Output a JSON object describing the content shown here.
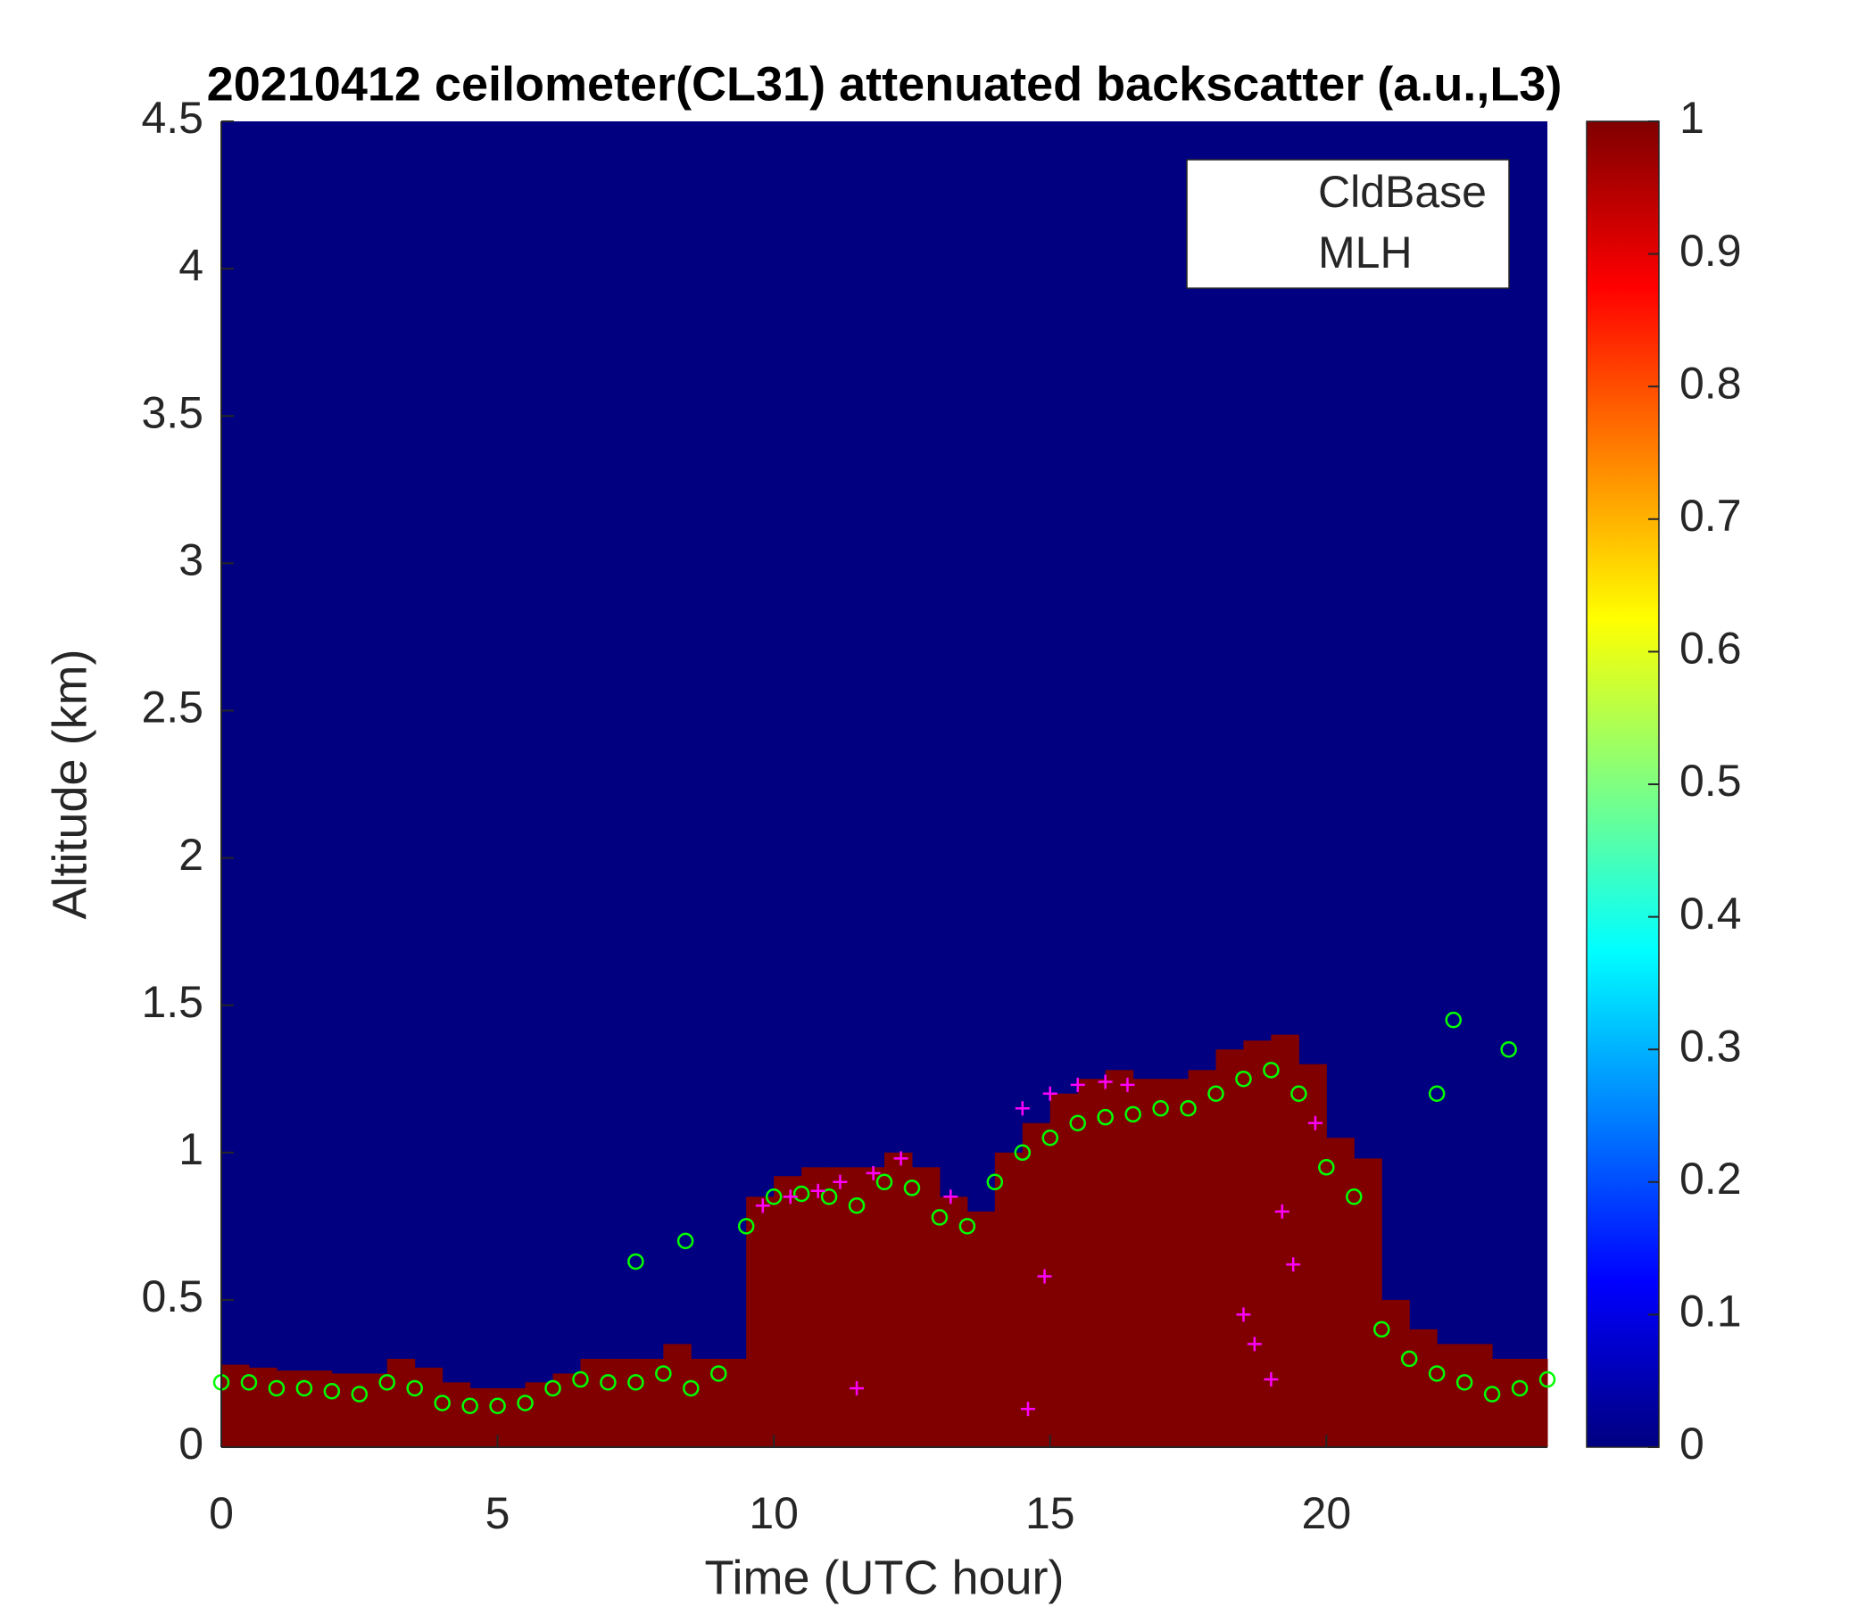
{
  "chart_data": {
    "type": "heatmap",
    "title": "20210412 ceilometer(CL31) attenuated backscatter (a.u.,L3)",
    "xlabel": "Time (UTC hour)",
    "ylabel": "Altitude (km)",
    "xlim": [
      0,
      24
    ],
    "ylim": [
      0,
      4.5
    ],
    "xticks": [
      0,
      5,
      10,
      15,
      20
    ],
    "yticks": [
      0,
      0.5,
      1,
      1.5,
      2,
      2.5,
      3,
      3.5,
      4,
      4.5
    ],
    "colormap": "jet",
    "clim": [
      0,
      1
    ],
    "cticks": [
      0,
      0.1,
      0.2,
      0.3,
      0.4,
      0.5,
      0.6,
      0.7,
      0.8,
      0.9,
      1
    ],
    "background_value": 0,
    "layer_value": 1,
    "layer_x": [
      0,
      0.5,
      1,
      1.5,
      2,
      2.5,
      3,
      3.5,
      4,
      4.5,
      5,
      5.5,
      6,
      6.5,
      7,
      7.5,
      8,
      8.5,
      9,
      9.5,
      10,
      10.5,
      11,
      11.5,
      12,
      12.5,
      13,
      13.5,
      14,
      14.5,
      15,
      15.5,
      16,
      16.5,
      17,
      17.5,
      18,
      18.5,
      19,
      19.5,
      20,
      20.5,
      21,
      21.5,
      22,
      22.5,
      23,
      23.5
    ],
    "layer_top": [
      0.28,
      0.27,
      0.26,
      0.26,
      0.25,
      0.25,
      0.3,
      0.27,
      0.22,
      0.2,
      0.2,
      0.22,
      0.25,
      0.3,
      0.3,
      0.3,
      0.35,
      0.3,
      0.3,
      0.85,
      0.92,
      0.95,
      0.95,
      0.95,
      1.0,
      0.95,
      0.85,
      0.8,
      1.0,
      1.1,
      1.2,
      1.25,
      1.28,
      1.25,
      1.25,
      1.28,
      1.35,
      1.38,
      1.4,
      1.3,
      1.05,
      0.98,
      0.5,
      0.4,
      0.35,
      0.35,
      0.3,
      0.3
    ],
    "legend": "upper right",
    "series": [
      {
        "name": "CldBase",
        "color": "#00ff00",
        "marker": "circle",
        "x": [
          0,
          0.5,
          1,
          1.5,
          2,
          2.5,
          3,
          3.5,
          4,
          4.5,
          5,
          5.5,
          6,
          6.5,
          7,
          7.5,
          8,
          8.5,
          9,
          9.5,
          10,
          10.5,
          11,
          11.5,
          12,
          12.5,
          13,
          13.5,
          14,
          14.5,
          15,
          15.5,
          16,
          16.5,
          17,
          17.5,
          18,
          18.5,
          19,
          19.5,
          20,
          20.5,
          21,
          21.5,
          22,
          22.5,
          23,
          23.5,
          24,
          22.3,
          23.3,
          7.5,
          8.4,
          22.0
        ],
        "y": [
          0.22,
          0.22,
          0.2,
          0.2,
          0.19,
          0.18,
          0.22,
          0.2,
          0.15,
          0.14,
          0.14,
          0.15,
          0.2,
          0.23,
          0.22,
          0.22,
          0.25,
          0.2,
          0.25,
          0.75,
          0.85,
          0.86,
          0.85,
          0.82,
          0.9,
          0.88,
          0.78,
          0.75,
          0.9,
          1.0,
          1.05,
          1.1,
          1.12,
          1.13,
          1.15,
          1.15,
          1.2,
          1.25,
          1.28,
          1.2,
          0.95,
          0.85,
          0.4,
          0.3,
          0.25,
          0.22,
          0.18,
          0.2,
          0.23,
          1.45,
          1.35,
          0.63,
          0.7,
          1.2
        ]
      },
      {
        "name": "MLH",
        "color": "#ff00ff",
        "marker": "plus",
        "x": [
          9.8,
          10.3,
          10.8,
          11.2,
          11.8,
          12.3,
          13.2,
          14.5,
          15,
          15.5,
          16,
          16.4,
          11.5,
          14.6,
          14.9,
          18.5,
          18.7,
          19,
          19.2,
          19.4,
          19.8
        ],
        "y": [
          0.82,
          0.85,
          0.87,
          0.9,
          0.93,
          0.98,
          0.85,
          1.15,
          1.2,
          1.23,
          1.24,
          1.23,
          0.2,
          0.13,
          0.58,
          0.45,
          0.35,
          0.23,
          0.8,
          0.62,
          1.1
        ]
      }
    ]
  }
}
